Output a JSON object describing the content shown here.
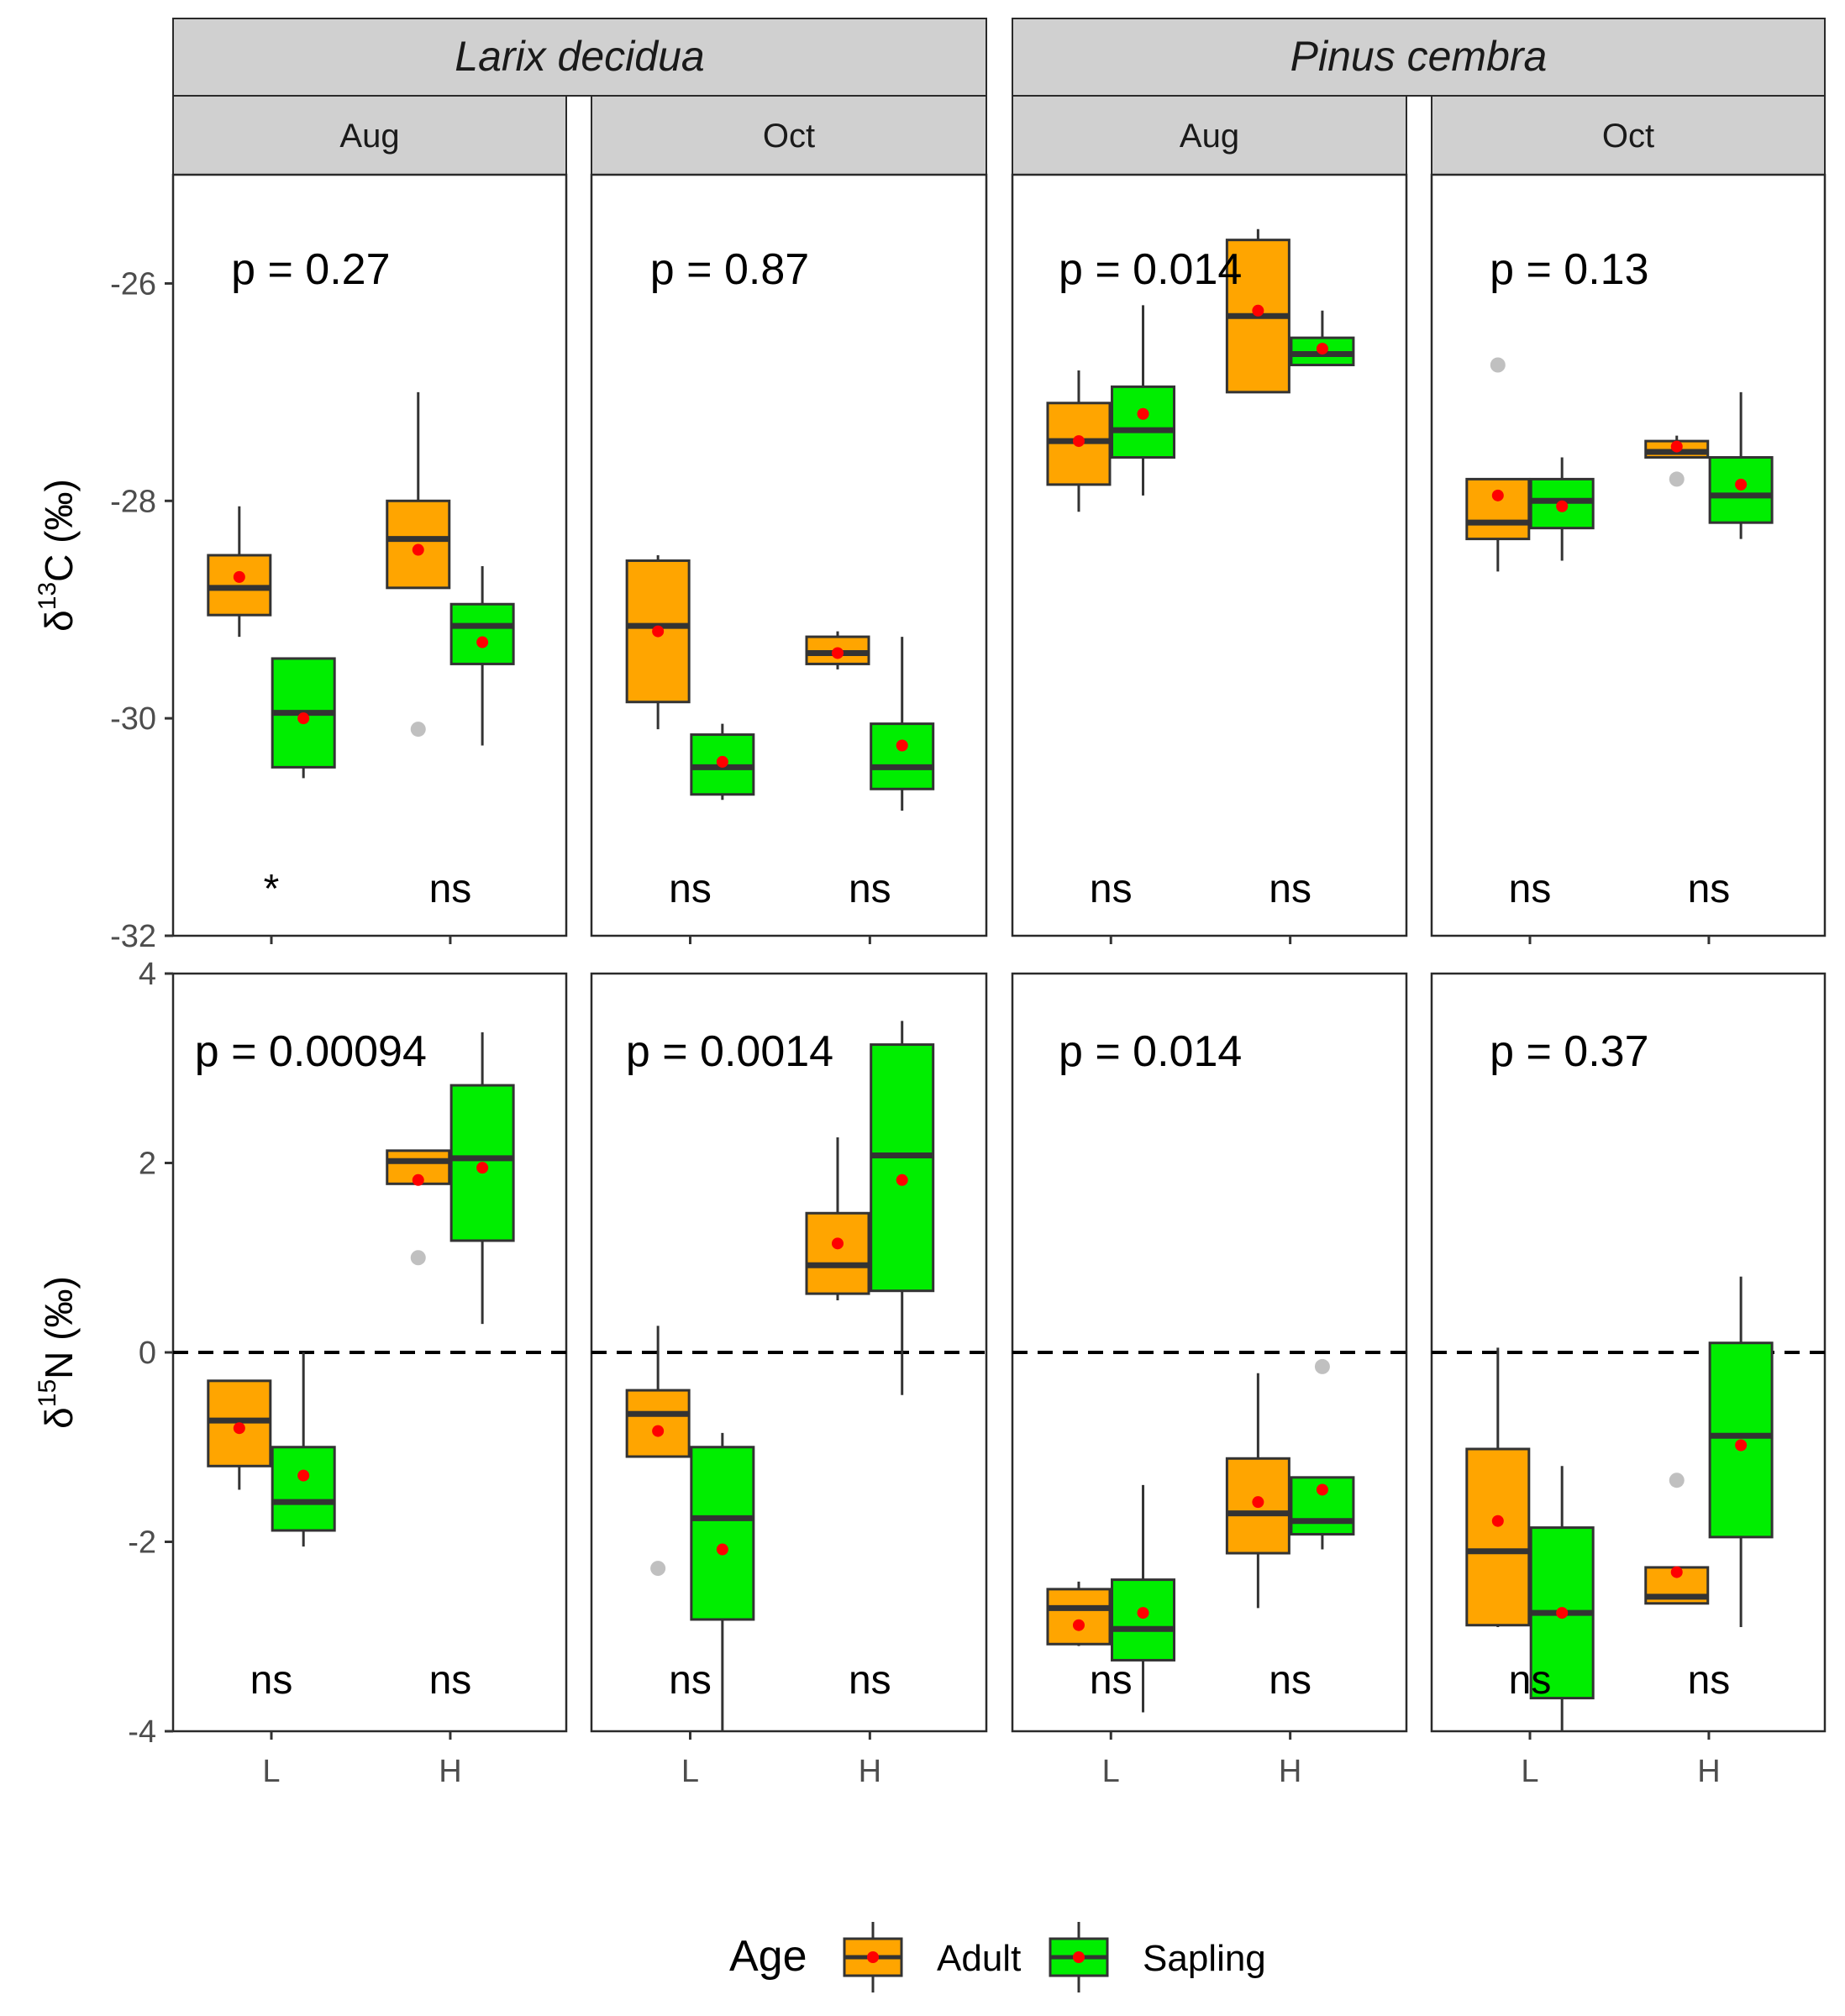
{
  "chart_data": {
    "type": "boxplot",
    "species": [
      {
        "name": "Larix decidua",
        "months": [
          "Aug",
          "Oct"
        ]
      },
      {
        "name": "Pinus cembra",
        "months": [
          "Aug",
          "Oct"
        ]
      }
    ],
    "categories": [
      "L",
      "H"
    ],
    "groups": [
      "Adult",
      "Sapling"
    ],
    "colors": {
      "Adult": "#FFA500",
      "Sapling": "#00EE00",
      "mean": "#FF0000",
      "outlier": "#C0C0C0",
      "line": "#333333"
    },
    "legend": {
      "title": "Age",
      "items": [
        "Adult",
        "Sapling"
      ]
    },
    "rows": [
      {
        "ylabel_main": "δ",
        "ylabel_sup": "13",
        "ylabel_rest": "C (‰)",
        "ylim": [
          -32,
          -25
        ],
        "ticks": [
          "-26",
          "-28",
          "-30",
          "-32"
        ],
        "tick_values": [
          -26,
          -28,
          -30,
          -32
        ],
        "hline": null,
        "panels": [
          {
            "species": "Larix decidua",
            "month": "Aug",
            "pvalue": "p = 0.27",
            "sig": [
              "*",
              "ns"
            ],
            "boxes": [
              {
                "cat": "L",
                "group": "Adult",
                "min": -29.25,
                "q1": -29.05,
                "median": -28.8,
                "q3": -28.5,
                "max": -28.05,
                "mean": -28.7,
                "outliers": []
              },
              {
                "cat": "L",
                "group": "Sapling",
                "min": -30.55,
                "q1": -30.45,
                "median": -29.95,
                "q3": -29.45,
                "max": -29.45,
                "mean": -30.0,
                "outliers": []
              },
              {
                "cat": "H",
                "group": "Adult",
                "min": -28.8,
                "q1": -28.8,
                "median": -28.35,
                "q3": -28.0,
                "max": -27.0,
                "mean": -28.45,
                "outliers": [
                  -30.1
                ]
              },
              {
                "cat": "H",
                "group": "Sapling",
                "min": -30.25,
                "q1": -29.5,
                "median": -29.15,
                "q3": -28.95,
                "max": -28.6,
                "mean": -29.3,
                "outliers": []
              }
            ]
          },
          {
            "species": "Larix decidua",
            "month": "Oct",
            "pvalue": "p = 0.87",
            "sig": [
              "ns",
              "ns"
            ],
            "boxes": [
              {
                "cat": "L",
                "group": "Adult",
                "min": -30.1,
                "q1": -29.85,
                "median": -29.15,
                "q3": -28.55,
                "max": -28.5,
                "mean": -29.2,
                "outliers": []
              },
              {
                "cat": "L",
                "group": "Sapling",
                "min": -30.75,
                "q1": -30.7,
                "median": -30.45,
                "q3": -30.15,
                "max": -30.05,
                "mean": -30.4,
                "outliers": []
              },
              {
                "cat": "H",
                "group": "Adult",
                "min": -29.55,
                "q1": -29.5,
                "median": -29.4,
                "q3": -29.25,
                "max": -29.2,
                "mean": -29.4,
                "outliers": []
              },
              {
                "cat": "H",
                "group": "Sapling",
                "min": -30.85,
                "q1": -30.65,
                "median": -30.45,
                "q3": -30.05,
                "max": -29.25,
                "mean": -30.25,
                "outliers": []
              }
            ]
          },
          {
            "species": "Pinus cembra",
            "month": "Aug",
            "pvalue": "p = 0.014",
            "sig": [
              "ns",
              "ns"
            ],
            "boxes": [
              {
                "cat": "L",
                "group": "Adult",
                "min": -28.1,
                "q1": -27.85,
                "median": -27.45,
                "q3": -27.1,
                "max": -26.8,
                "mean": -27.45,
                "outliers": []
              },
              {
                "cat": "L",
                "group": "Sapling",
                "min": -27.95,
                "q1": -27.6,
                "median": -27.35,
                "q3": -26.95,
                "max": -26.2,
                "mean": -27.2,
                "outliers": []
              },
              {
                "cat": "H",
                "group": "Adult",
                "min": -27.0,
                "q1": -27.0,
                "median": -26.3,
                "q3": -25.6,
                "max": -25.5,
                "mean": -26.25,
                "outliers": []
              },
              {
                "cat": "H",
                "group": "Sapling",
                "min": -26.75,
                "q1": -26.75,
                "median": -26.65,
                "q3": -26.5,
                "max": -26.25,
                "mean": -26.6,
                "outliers": []
              }
            ]
          },
          {
            "species": "Pinus cembra",
            "month": "Oct",
            "pvalue": "p = 0.13",
            "sig": [
              "ns",
              "ns"
            ],
            "boxes": [
              {
                "cat": "L",
                "group": "Adult",
                "min": -28.65,
                "q1": -28.35,
                "median": -28.2,
                "q3": -27.8,
                "max": -27.8,
                "mean": -27.95,
                "outliers": [
                  -26.75
                ]
              },
              {
                "cat": "L",
                "group": "Sapling",
                "min": -28.55,
                "q1": -28.25,
                "median": -28.0,
                "q3": -27.8,
                "max": -27.6,
                "mean": -28.05,
                "outliers": []
              },
              {
                "cat": "H",
                "group": "Adult",
                "min": -27.6,
                "q1": -27.6,
                "median": -27.55,
                "q3": -27.45,
                "max": -27.4,
                "mean": -27.5,
                "outliers": [
                  -27.8
                ]
              },
              {
                "cat": "H",
                "group": "Sapling",
                "min": -28.35,
                "q1": -28.2,
                "median": -27.95,
                "q3": -27.6,
                "max": -27.0,
                "mean": -27.85,
                "outliers": []
              }
            ]
          }
        ]
      },
      {
        "ylabel_main": "δ",
        "ylabel_sup": "15",
        "ylabel_rest": "N (‰)",
        "ylim": [
          -4,
          4
        ],
        "ticks": [
          "4",
          "2",
          "0",
          "-2",
          "-4"
        ],
        "tick_values": [
          4,
          2,
          0,
          -2,
          -4
        ],
        "hline": 0,
        "panels": [
          {
            "species": "Larix decidua",
            "month": "Aug",
            "pvalue": "p = 0.00094",
            "sig": [
              "ns",
              "ns"
            ],
            "boxes": [
              {
                "cat": "L",
                "group": "Adult",
                "min": -1.45,
                "q1": -1.2,
                "median": -0.72,
                "q3": -0.3,
                "max": -0.3,
                "mean": -0.8,
                "outliers": []
              },
              {
                "cat": "L",
                "group": "Sapling",
                "min": -2.05,
                "q1": -1.88,
                "median": -1.58,
                "q3": -1.0,
                "max": 0.0,
                "mean": -1.3,
                "outliers": []
              },
              {
                "cat": "H",
                "group": "Adult",
                "min": 1.78,
                "q1": 1.78,
                "median": 2.02,
                "q3": 2.13,
                "max": 2.13,
                "mean": 1.82,
                "outliers": [
                  1.0
                ]
              },
              {
                "cat": "H",
                "group": "Sapling",
                "min": 0.3,
                "q1": 1.18,
                "median": 2.05,
                "q3": 2.82,
                "max": 3.38,
                "mean": 1.95,
                "outliers": []
              }
            ]
          },
          {
            "species": "Larix decidua",
            "month": "Oct",
            "pvalue": "p = 0.0014",
            "sig": [
              "ns",
              "ns"
            ],
            "boxes": [
              {
                "cat": "L",
                "group": "Adult",
                "min": -1.1,
                "q1": -1.1,
                "median": -0.65,
                "q3": -0.4,
                "max": 0.28,
                "mean": -0.83,
                "outliers": [
                  -2.28
                ]
              },
              {
                "cat": "L",
                "group": "Sapling",
                "min": -4.0,
                "q1": -2.82,
                "median": -1.75,
                "q3": -1.0,
                "max": -0.85,
                "mean": -2.08,
                "outliers": []
              },
              {
                "cat": "H",
                "group": "Adult",
                "min": 0.55,
                "q1": 0.62,
                "median": 0.92,
                "q3": 1.47,
                "max": 2.27,
                "mean": 1.15,
                "outliers": []
              },
              {
                "cat": "H",
                "group": "Sapling",
                "min": -0.45,
                "q1": 0.65,
                "median": 2.08,
                "q3": 3.25,
                "max": 3.5,
                "mean": 1.82,
                "outliers": []
              }
            ]
          },
          {
            "species": "Pinus cembra",
            "month": "Aug",
            "pvalue": "p = 0.014",
            "sig": [
              "ns",
              "ns"
            ],
            "boxes": [
              {
                "cat": "L",
                "group": "Adult",
                "min": -3.1,
                "q1": -3.08,
                "median": -2.7,
                "q3": -2.5,
                "max": -2.42,
                "mean": -2.88,
                "outliers": []
              },
              {
                "cat": "L",
                "group": "Sapling",
                "min": -3.8,
                "q1": -3.25,
                "median": -2.92,
                "q3": -2.4,
                "max": -1.4,
                "mean": -2.75,
                "outliers": []
              },
              {
                "cat": "H",
                "group": "Adult",
                "min": -2.7,
                "q1": -2.12,
                "median": -1.7,
                "q3": -1.12,
                "max": -0.22,
                "mean": -1.58,
                "outliers": []
              },
              {
                "cat": "H",
                "group": "Sapling",
                "min": -2.08,
                "q1": -1.92,
                "median": -1.78,
                "q3": -1.32,
                "max": -1.32,
                "mean": -1.45,
                "outliers": [
                  -0.15
                ]
              }
            ]
          },
          {
            "species": "Pinus cembra",
            "month": "Oct",
            "pvalue": "p = 0.37",
            "sig": [
              "ns",
              "ns"
            ],
            "boxes": [
              {
                "cat": "L",
                "group": "Adult",
                "min": -2.9,
                "q1": -2.88,
                "median": -2.1,
                "q3": -1.02,
                "max": 0.05,
                "mean": -1.78,
                "outliers": []
              },
              {
                "cat": "L",
                "group": "Sapling",
                "min": -4.0,
                "q1": -3.65,
                "median": -2.75,
                "q3": -1.85,
                "max": -1.2,
                "mean": -2.75,
                "outliers": []
              },
              {
                "cat": "H",
                "group": "Adult",
                "min": -2.65,
                "q1": -2.65,
                "median": -2.58,
                "q3": -2.27,
                "max": -2.27,
                "mean": -2.32,
                "outliers": [
                  -1.35
                ]
              },
              {
                "cat": "H",
                "group": "Sapling",
                "min": -2.9,
                "q1": -1.95,
                "median": -0.88,
                "q3": 0.1,
                "max": 0.8,
                "mean": -0.98,
                "outliers": []
              }
            ]
          }
        ]
      }
    ]
  }
}
